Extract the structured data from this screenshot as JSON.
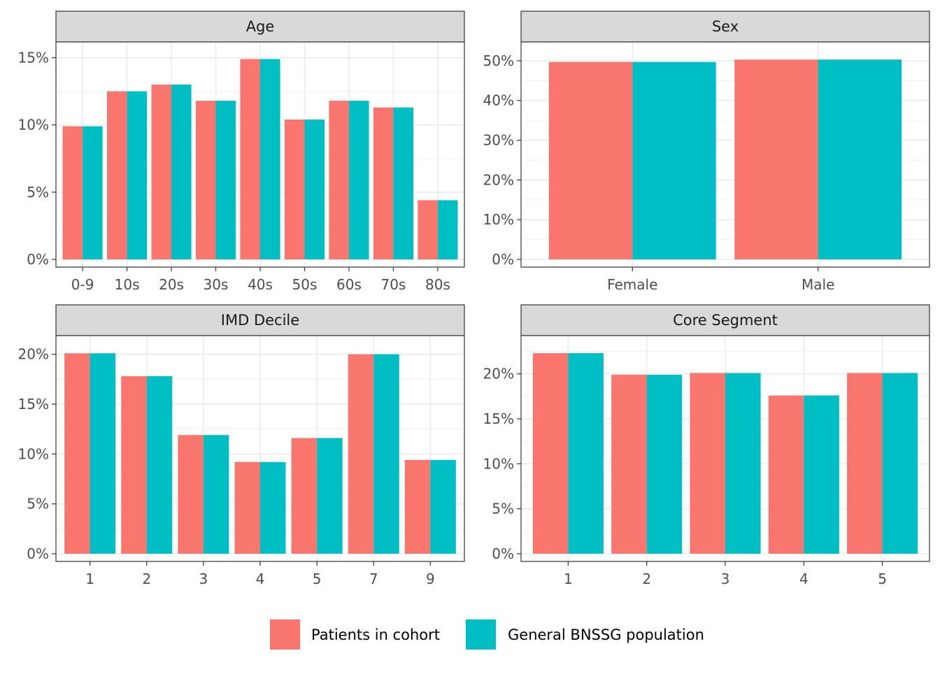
{
  "chart_data": [
    {
      "type": "bar",
      "title": "Age",
      "categories": [
        "0-9",
        "10s",
        "20s",
        "30s",
        "40s",
        "50s",
        "60s",
        "70s",
        "80s"
      ],
      "series": [
        {
          "name": "Patients in cohort",
          "values": [
            9.9,
            12.5,
            13.0,
            11.8,
            14.9,
            10.4,
            11.8,
            11.3,
            4.4
          ]
        },
        {
          "name": "General BNSSG population",
          "values": [
            9.9,
            12.5,
            13.0,
            11.8,
            14.9,
            10.4,
            11.8,
            11.3,
            4.4
          ]
        }
      ],
      "yticks": [
        0,
        5,
        10,
        15
      ],
      "ytick_labels": [
        "0%",
        "5%",
        "10%",
        "15%"
      ],
      "ylim": [
        0,
        15.6
      ]
    },
    {
      "type": "bar",
      "title": "Sex",
      "categories": [
        "Female",
        "Male"
      ],
      "series": [
        {
          "name": "Patients in cohort",
          "values": [
            49.7,
            50.3
          ]
        },
        {
          "name": "General BNSSG population",
          "values": [
            49.7,
            50.3
          ]
        }
      ],
      "yticks": [
        0,
        10,
        20,
        30,
        40,
        50
      ],
      "ytick_labels": [
        "0%",
        "10%",
        "20%",
        "30%",
        "40%",
        "50%"
      ],
      "ylim": [
        0,
        52.8
      ]
    },
    {
      "type": "bar",
      "title": "IMD Decile",
      "categories": [
        "1",
        "2",
        "3",
        "4",
        "5",
        "7",
        "9"
      ],
      "series": [
        {
          "name": "Patients in cohort",
          "values": [
            20.1,
            17.8,
            11.9,
            9.2,
            11.6,
            20.0,
            9.4
          ]
        },
        {
          "name": "General BNSSG population",
          "values": [
            20.1,
            17.8,
            11.9,
            9.2,
            11.6,
            20.0,
            9.4
          ]
        }
      ],
      "yticks": [
        0,
        5,
        10,
        15,
        20
      ],
      "ytick_labels": [
        "0%",
        "5%",
        "10%",
        "15%",
        "20%"
      ],
      "ylim": [
        0,
        21.1
      ]
    },
    {
      "type": "bar",
      "title": "Core Segment",
      "categories": [
        "1",
        "2",
        "3",
        "4",
        "5"
      ],
      "series": [
        {
          "name": "Patients in cohort",
          "values": [
            22.3,
            19.9,
            20.1,
            17.6,
            20.1
          ]
        },
        {
          "name": "General BNSSG population",
          "values": [
            22.3,
            19.9,
            20.1,
            17.6,
            20.1
          ]
        }
      ],
      "yticks": [
        0,
        5,
        10,
        15,
        20
      ],
      "ytick_labels": [
        "0%",
        "5%",
        "10%",
        "15%",
        "20%"
      ],
      "ylim": [
        0,
        23.4
      ]
    }
  ],
  "legend": {
    "position": "bottom",
    "items": [
      {
        "label": "Patients in cohort",
        "color": "#F8766D"
      },
      {
        "label": "General BNSSG population",
        "color": "#00BFC4"
      }
    ]
  },
  "grid": true
}
